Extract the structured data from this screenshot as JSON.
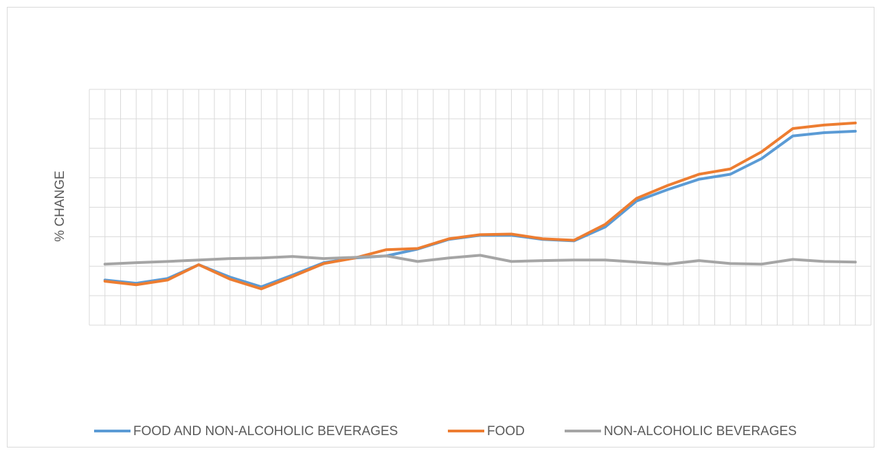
{
  "chart_data": {
    "type": "line",
    "y_label": "% CHANGE",
    "categories": [
      null,
      null,
      null,
      null,
      null,
      null,
      null,
      null,
      null,
      null,
      null,
      null,
      null,
      null,
      null,
      null,
      null,
      null,
      null,
      null,
      null,
      null,
      null,
      null,
      null
    ],
    "series": [
      {
        "name": "FOOD AND NON-ALCOHOLIC BEVERAGES",
        "color": "#5b9bd5",
        "values": [
          -0.47,
          -0.58,
          -0.42,
          0.05,
          -0.37,
          -0.7,
          -0.3,
          0.12,
          0.28,
          0.35,
          0.58,
          0.91,
          1.05,
          1.05,
          0.91,
          0.86,
          1.33,
          2.21,
          2.6,
          2.95,
          3.12,
          3.65,
          4.42,
          4.53,
          4.58
        ]
      },
      {
        "name": "FOOD",
        "color": "#ed7d31",
        "values": [
          -0.51,
          -0.63,
          -0.47,
          0.05,
          -0.44,
          -0.77,
          -0.35,
          0.09,
          0.28,
          0.56,
          0.6,
          0.93,
          1.07,
          1.09,
          0.93,
          0.88,
          1.42,
          2.3,
          2.74,
          3.12,
          3.3,
          3.88,
          4.67,
          4.79,
          4.86
        ]
      },
      {
        "name": "NON-ALCOHOLIC BEVERAGES",
        "color": "#a5a5a5",
        "values": [
          0.07,
          0.12,
          0.16,
          0.21,
          0.26,
          0.28,
          0.33,
          0.26,
          0.3,
          0.35,
          0.16,
          0.28,
          0.37,
          0.16,
          0.19,
          0.21,
          0.21,
          0.14,
          0.07,
          0.19,
          0.09,
          0.07,
          0.23,
          0.16,
          0.14
        ]
      }
    ],
    "ylim": [
      -2,
      6
    ],
    "yticks": [
      -2,
      -1,
      0,
      1,
      2,
      3,
      4,
      5,
      6
    ],
    "grid": true,
    "legend": "bottom"
  }
}
